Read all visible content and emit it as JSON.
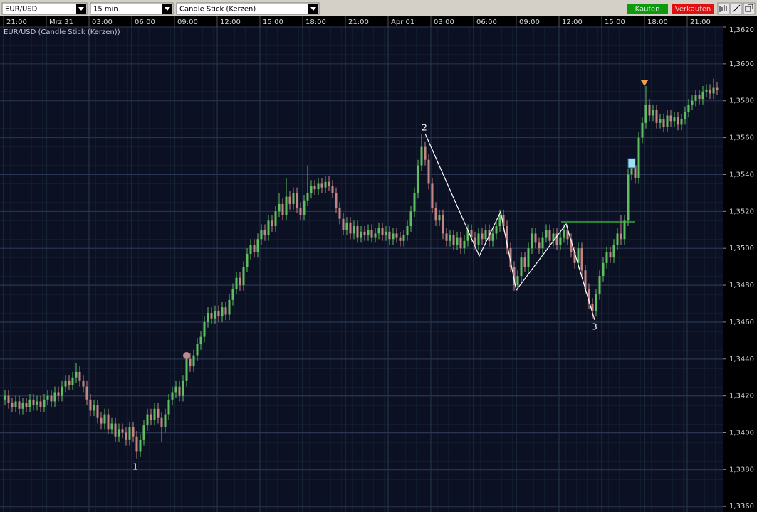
{
  "toolbar": {
    "symbol": "EUR/USD",
    "interval": "15 min",
    "chart_style": "Candle Stick (Kerzen)",
    "buy": "Kaufen",
    "sell": "Verkaufen"
  },
  "chart_data": {
    "type": "candlestick",
    "title": "EUR/USD (Candle Stick (Kerzen))",
    "categories": [
      "21:00",
      null,
      null,
      null,
      null,
      null,
      null,
      null,
      null,
      null,
      null,
      null,
      "Mrz 31",
      null,
      null,
      null,
      null,
      null,
      null,
      null,
      null,
      null,
      null,
      null,
      "03:00",
      null,
      null,
      null,
      null,
      null,
      null,
      null,
      null,
      null,
      null,
      null,
      "06:00",
      null,
      null,
      null,
      null,
      null,
      null,
      null,
      null,
      null,
      null,
      null,
      "09:00",
      null,
      null,
      null,
      null,
      null,
      null,
      null,
      null,
      null,
      null,
      null,
      "12:00",
      null,
      null,
      null,
      null,
      null,
      null,
      null,
      null,
      null,
      null,
      null,
      "15:00",
      null,
      null,
      null,
      null,
      null,
      null,
      null,
      null,
      null,
      null,
      null,
      "18:00",
      null,
      null,
      null,
      null,
      null,
      null,
      null,
      null,
      null,
      null,
      null,
      "21:00",
      null,
      null,
      null,
      null,
      null,
      null,
      null,
      null,
      null,
      null,
      null,
      "Apr 01",
      null,
      null,
      null,
      null,
      null,
      null,
      null,
      null,
      null,
      null,
      null,
      "03:00",
      null,
      null,
      null,
      null,
      null,
      null,
      null,
      null,
      null,
      null,
      null,
      "06:00",
      null,
      null,
      null,
      null,
      null,
      null,
      null,
      null,
      null,
      null,
      null,
      "09:00",
      null,
      null,
      null,
      null,
      null,
      null,
      null,
      null,
      null,
      null,
      null,
      "12:00",
      null,
      null,
      null,
      null,
      null,
      null,
      null,
      null,
      null,
      null,
      null,
      "15:00",
      null,
      null,
      null,
      null,
      null,
      null,
      null,
      null,
      null,
      null,
      null,
      "18:00",
      null,
      null,
      null,
      null,
      null,
      null,
      null,
      null,
      null,
      null,
      null,
      "21:00",
      null,
      null,
      null,
      null,
      null,
      null,
      null,
      null
    ],
    "open": [
      1.3418,
      1.342,
      1.3416,
      1.3414,
      1.3417,
      1.3413,
      1.3416,
      1.3414,
      1.3418,
      1.3415,
      1.3417,
      1.3414,
      1.3418,
      1.342,
      1.3417,
      1.3422,
      1.342,
      1.3425,
      1.3428,
      1.3426,
      1.343,
      1.3433,
      1.3428,
      1.3425,
      1.3418,
      1.3412,
      1.3415,
      1.3408,
      1.3405,
      1.341,
      1.3402,
      1.3405,
      1.3398,
      1.3402,
      1.34,
      1.3396,
      1.3403,
      1.3398,
      1.339,
      1.3396,
      1.3404,
      1.341,
      1.3407,
      1.3413,
      1.3408,
      1.3403,
      1.341,
      1.3418,
      1.3422,
      1.3425,
      1.342,
      1.3428,
      1.344,
      1.3436,
      1.3442,
      1.3448,
      1.3452,
      1.346,
      1.3465,
      1.3462,
      1.3466,
      1.3463,
      1.3468,
      1.3464,
      1.3472,
      1.3478,
      1.3484,
      1.348,
      1.349,
      1.3497,
      1.3502,
      1.3498,
      1.3505,
      1.351,
      1.3507,
      1.3515,
      1.3512,
      1.352,
      1.3524,
      1.3518,
      1.3528,
      1.3524,
      1.353,
      1.3522,
      1.3518,
      1.3526,
      1.353,
      1.3534,
      1.3532,
      1.3535,
      1.3533,
      1.3536,
      1.3534,
      1.353,
      1.3522,
      1.3516,
      1.351,
      1.3514,
      1.3508,
      1.3512,
      1.3506,
      1.3509,
      1.3507,
      1.351,
      1.3506,
      1.3508,
      1.3511,
      1.3507,
      1.3509,
      1.3505,
      1.3508,
      1.3506,
      1.3504,
      1.3507,
      1.3512,
      1.352,
      1.353,
      1.3545,
      1.3555,
      1.3548,
      1.3535,
      1.3522,
      1.3515,
      1.3518,
      1.3508,
      1.3504,
      1.3507,
      1.3502,
      1.3506,
      1.35,
      1.3504,
      1.351,
      1.3506,
      1.3502,
      1.3508,
      1.3505,
      1.351,
      1.3504,
      1.3508,
      1.3512,
      1.3518,
      1.3512,
      1.35,
      1.349,
      1.348,
      1.3485,
      1.3495,
      1.349,
      1.35,
      1.3508,
      1.3503,
      1.35,
      1.3506,
      1.351,
      1.3504,
      1.3508,
      1.3502,
      1.3506,
      1.351,
      1.3505,
      1.3498,
      1.3492,
      1.35,
      1.3488,
      1.3478,
      1.347,
      1.3466,
      1.3475,
      1.3485,
      1.3492,
      1.3498,
      1.3495,
      1.3502,
      1.3508,
      1.3505,
      1.3515,
      1.354,
      1.3545,
      1.3538,
      1.356,
      1.3568,
      1.3578,
      1.3572,
      1.3575,
      1.3568,
      1.357,
      1.3566,
      1.3572,
      1.3569,
      1.3571,
      1.3567,
      1.357,
      1.3574,
      1.3578,
      1.358,
      1.3583,
      1.3581,
      1.3585,
      1.3586,
      1.3584,
      1.3587
    ],
    "high": [
      1.3423,
      1.3423,
      1.3419,
      1.342,
      1.342,
      1.3419,
      1.3419,
      1.3421,
      1.3421,
      1.342,
      1.342,
      1.3421,
      1.3423,
      1.3423,
      1.3425,
      1.3425,
      1.3428,
      1.3431,
      1.3431,
      1.3433,
      1.3438,
      1.3436,
      1.3431,
      1.3428,
      1.3421,
      1.3418,
      1.3418,
      1.3411,
      1.3413,
      1.3413,
      1.3408,
      1.3408,
      1.3405,
      1.3405,
      1.3403,
      1.3406,
      1.3406,
      1.3401,
      1.3399,
      1.3407,
      1.3413,
      1.3413,
      1.3416,
      1.3416,
      1.3411,
      1.3413,
      1.3421,
      1.3425,
      1.3428,
      1.3428,
      1.3431,
      1.3443,
      1.3443,
      1.3445,
      1.3451,
      1.3455,
      1.3463,
      1.3468,
      1.3468,
      1.3469,
      1.3469,
      1.3471,
      1.3471,
      1.3475,
      1.3481,
      1.3487,
      1.3487,
      1.3493,
      1.35,
      1.3505,
      1.3505,
      1.3508,
      1.3513,
      1.3513,
      1.3518,
      1.3518,
      1.3523,
      1.353,
      1.3527,
      1.3538,
      1.3531,
      1.3533,
      1.3533,
      1.3525,
      1.3529,
      1.3545,
      1.3537,
      1.3537,
      1.3538,
      1.3538,
      1.3539,
      1.3539,
      1.3537,
      1.3533,
      1.3525,
      1.3519,
      1.3517,
      1.3517,
      1.3515,
      1.3515,
      1.3512,
      1.3512,
      1.3513,
      1.3513,
      1.3511,
      1.3514,
      1.3514,
      1.3512,
      1.3512,
      1.3511,
      1.3511,
      1.3509,
      1.351,
      1.3515,
      1.3523,
      1.3533,
      1.3548,
      1.3562,
      1.3558,
      1.3551,
      1.3538,
      1.3525,
      1.3521,
      1.3521,
      1.3511,
      1.351,
      1.351,
      1.3509,
      1.3509,
      1.3507,
      1.3513,
      1.3513,
      1.3509,
      1.3511,
      1.3511,
      1.3513,
      1.3513,
      1.3511,
      1.3515,
      1.3521,
      1.3521,
      1.3515,
      1.3503,
      1.3493,
      1.3488,
      1.3498,
      1.3498,
      1.3503,
      1.3511,
      1.3511,
      1.3506,
      1.3509,
      1.3513,
      1.3513,
      1.3511,
      1.3511,
      1.3509,
      1.3513,
      1.3513,
      1.3508,
      1.3501,
      1.3503,
      1.3503,
      1.3491,
      1.3481,
      1.3473,
      1.3478,
      1.3488,
      1.3495,
      1.3501,
      1.3501,
      1.3505,
      1.3511,
      1.3518,
      1.3518,
      1.3543,
      1.3548,
      1.3548,
      1.3563,
      1.3571,
      1.3588,
      1.3581,
      1.3578,
      1.3578,
      1.3573,
      1.3573,
      1.3575,
      1.3575,
      1.3574,
      1.3574,
      1.3573,
      1.3577,
      1.3581,
      1.3583,
      1.3586,
      1.3586,
      1.3588,
      1.3589,
      1.3589,
      1.3592,
      1.359
    ],
    "low": [
      1.3415,
      1.3413,
      1.3411,
      1.3411,
      1.341,
      1.341,
      1.3411,
      1.3411,
      1.3412,
      1.3412,
      1.3411,
      1.3411,
      1.3415,
      1.3414,
      1.3414,
      1.3417,
      1.3417,
      1.3422,
      1.3423,
      1.3423,
      1.3427,
      1.3425,
      1.3422,
      1.3415,
      1.3409,
      1.3409,
      1.3405,
      1.3402,
      1.3402,
      1.3399,
      1.3399,
      1.3395,
      1.3395,
      1.3397,
      1.3393,
      1.3393,
      1.3395,
      1.3386,
      1.3387,
      1.3393,
      1.3401,
      1.3404,
      1.3404,
      1.3405,
      1.3395,
      1.34,
      1.3407,
      1.3415,
      1.3419,
      1.3417,
      1.3417,
      1.3425,
      1.3433,
      1.3433,
      1.3439,
      1.3445,
      1.3449,
      1.3457,
      1.3459,
      1.3459,
      1.346,
      1.346,
      1.3461,
      1.3461,
      1.3469,
      1.3475,
      1.3477,
      1.3477,
      1.3487,
      1.3494,
      1.3495,
      1.3495,
      1.3502,
      1.3504,
      1.3504,
      1.3509,
      1.3509,
      1.3517,
      1.3515,
      1.3515,
      1.3521,
      1.3521,
      1.3519,
      1.3515,
      1.3515,
      1.3523,
      1.3527,
      1.3529,
      1.3529,
      1.353,
      1.353,
      1.3531,
      1.3527,
      1.3519,
      1.3513,
      1.3507,
      1.3507,
      1.3505,
      1.3505,
      1.3503,
      1.3503,
      1.3504,
      1.3504,
      1.3503,
      1.3503,
      1.3505,
      1.3504,
      1.3504,
      1.3502,
      1.3502,
      1.3503,
      1.3501,
      1.3501,
      1.3504,
      1.3509,
      1.3517,
      1.3527,
      1.3542,
      1.3545,
      1.3532,
      1.3519,
      1.3512,
      1.3512,
      1.3505,
      1.3501,
      1.3501,
      1.3499,
      1.3499,
      1.3497,
      1.3497,
      1.3501,
      1.3503,
      1.3499,
      1.3499,
      1.3502,
      1.3502,
      1.3501,
      1.3501,
      1.3505,
      1.3509,
      1.3509,
      1.3497,
      1.3487,
      1.3477,
      1.3477,
      1.3482,
      1.3487,
      1.3487,
      1.3497,
      1.35,
      1.3497,
      1.3497,
      1.3503,
      1.3501,
      1.3501,
      1.3499,
      1.3499,
      1.3503,
      1.3502,
      1.3495,
      1.3489,
      1.3489,
      1.3485,
      1.3475,
      1.3467,
      1.3462,
      1.3463,
      1.3472,
      1.3482,
      1.3489,
      1.3492,
      1.3492,
      1.3499,
      1.3502,
      1.3502,
      1.3512,
      1.3537,
      1.3535,
      1.3535,
      1.3557,
      1.3565,
      1.3569,
      1.3569,
      1.3565,
      1.3565,
      1.3563,
      1.3563,
      1.3566,
      1.3566,
      1.3564,
      1.3564,
      1.3567,
      1.3571,
      1.3575,
      1.3577,
      1.3578,
      1.3578,
      1.3582,
      1.3581,
      1.3581,
      1.3583
    ],
    "close": [
      1.342,
      1.3416,
      1.3414,
      1.3417,
      1.3413,
      1.3416,
      1.3414,
      1.3418,
      1.3415,
      1.3417,
      1.3414,
      1.3418,
      1.342,
      1.3417,
      1.3422,
      1.342,
      1.3425,
      1.3428,
      1.3426,
      1.343,
      1.3433,
      1.3428,
      1.3425,
      1.3418,
      1.3412,
      1.3415,
      1.3408,
      1.3405,
      1.341,
      1.3402,
      1.3405,
      1.3398,
      1.3402,
      1.34,
      1.3396,
      1.3403,
      1.3398,
      1.339,
      1.3396,
      1.3404,
      1.341,
      1.3407,
      1.3413,
      1.3408,
      1.3403,
      1.341,
      1.3418,
      1.3422,
      1.3425,
      1.342,
      1.3428,
      1.344,
      1.3436,
      1.3442,
      1.3448,
      1.3452,
      1.346,
      1.3465,
      1.3462,
      1.3466,
      1.3463,
      1.3468,
      1.3464,
      1.3472,
      1.3478,
      1.3484,
      1.348,
      1.349,
      1.3497,
      1.3502,
      1.3498,
      1.3505,
      1.351,
      1.3507,
      1.3515,
      1.3512,
      1.352,
      1.3524,
      1.3518,
      1.3528,
      1.3524,
      1.353,
      1.3522,
      1.3518,
      1.3526,
      1.353,
      1.3534,
      1.3532,
      1.3535,
      1.3533,
      1.3536,
      1.3534,
      1.353,
      1.3522,
      1.3516,
      1.351,
      1.3514,
      1.3508,
      1.3512,
      1.3506,
      1.3509,
      1.3507,
      1.351,
      1.3506,
      1.3508,
      1.3511,
      1.3507,
      1.3509,
      1.3505,
      1.3508,
      1.3506,
      1.3504,
      1.3507,
      1.3512,
      1.352,
      1.353,
      1.3545,
      1.3555,
      1.3548,
      1.3535,
      1.3522,
      1.3515,
      1.3518,
      1.3508,
      1.3504,
      1.3507,
      1.3502,
      1.3506,
      1.35,
      1.3504,
      1.351,
      1.3506,
      1.3502,
      1.3508,
      1.3505,
      1.351,
      1.3504,
      1.3508,
      1.3512,
      1.3518,
      1.3512,
      1.35,
      1.349,
      1.348,
      1.3485,
      1.3495,
      1.349,
      1.35,
      1.3508,
      1.3503,
      1.35,
      1.3506,
      1.351,
      1.3504,
      1.3508,
      1.3502,
      1.3506,
      1.351,
      1.3505,
      1.3498,
      1.3492,
      1.35,
      1.3488,
      1.3478,
      1.347,
      1.3466,
      1.3475,
      1.3485,
      1.3492,
      1.3498,
      1.3495,
      1.3502,
      1.3508,
      1.3505,
      1.3515,
      1.354,
      1.3545,
      1.3538,
      1.356,
      1.3568,
      1.3578,
      1.3572,
      1.3575,
      1.3568,
      1.357,
      1.3566,
      1.3572,
      1.3569,
      1.3571,
      1.3567,
      1.357,
      1.3574,
      1.3578,
      1.358,
      1.3583,
      1.3581,
      1.3585,
      1.3586,
      1.3584,
      1.3587,
      1.3586
    ],
    "up_color": "#5fbf5f",
    "down_color": "#c48585",
    "ylim": [
      1.3357,
      1.362
    ],
    "yticks": [
      {
        "value": 1.336,
        "label": "1,3360"
      },
      {
        "value": 1.338,
        "label": "1,3380"
      },
      {
        "value": 1.34,
        "label": "1,3400"
      },
      {
        "value": 1.342,
        "label": "1,3420"
      },
      {
        "value": 1.344,
        "label": "1,3440"
      },
      {
        "value": 1.346,
        "label": "1,3460"
      },
      {
        "value": 1.348,
        "label": "1,3480"
      },
      {
        "value": 1.35,
        "label": "1,3500"
      },
      {
        "value": 1.352,
        "label": "1,3520"
      },
      {
        "value": 1.354,
        "label": "1,3540"
      },
      {
        "value": 1.356,
        "label": "1,3560"
      },
      {
        "value": 1.358,
        "label": "1,3580"
      },
      {
        "value": 1.36,
        "label": "1,3600"
      },
      {
        "value": 1.362,
        "label": "1,3620"
      }
    ],
    "grid": true,
    "annotations": [
      "1",
      "2",
      "3"
    ]
  }
}
